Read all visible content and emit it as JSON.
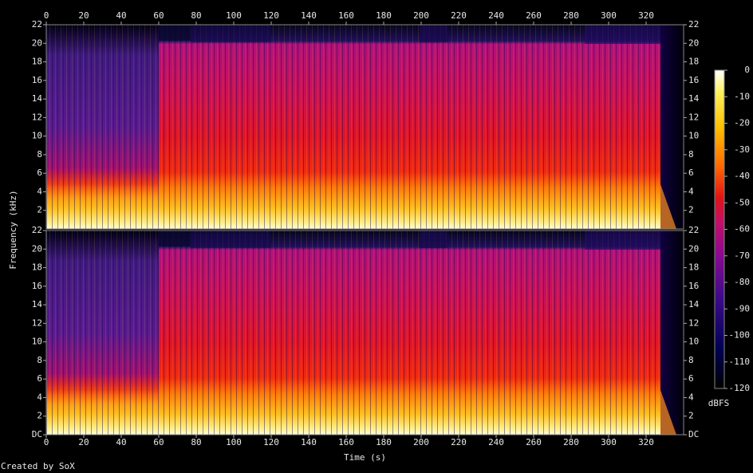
{
  "chart_data": [
    {
      "type": "spectrogram",
      "xlim": [
        0,
        340
      ],
      "xticks": [
        0,
        20,
        40,
        60,
        80,
        100,
        120,
        140,
        160,
        180,
        200,
        220,
        240,
        260,
        280,
        300,
        320
      ],
      "ylim": [
        0,
        22
      ],
      "yticks": [
        2,
        4,
        6,
        8,
        10,
        12,
        14,
        16,
        18,
        20,
        22
      ]
    },
    {
      "type": "spectrogram",
      "xlim": [
        0,
        340
      ],
      "xticks": [
        0,
        20,
        40,
        60,
        80,
        100,
        120,
        140,
        160,
        180,
        200,
        220,
        240,
        260,
        280,
        300,
        320
      ],
      "ylim": [
        0,
        22
      ],
      "yticks": [
        {
          "value": 0,
          "label": "DC"
        },
        2,
        4,
        6,
        8,
        10,
        12,
        14,
        16,
        18,
        20,
        22
      ],
      "xlabel": "Time (s)"
    }
  ],
  "ylabel": "Frequency (kHz)",
  "colorbar": {
    "label": "dBFS",
    "lim": [
      -120,
      0
    ],
    "ticks": [
      0,
      -10,
      -20,
      -30,
      -40,
      -50,
      -60,
      -70,
      -80,
      -90,
      -100,
      -110,
      -120
    ]
  },
  "footer": "Created by SoX"
}
